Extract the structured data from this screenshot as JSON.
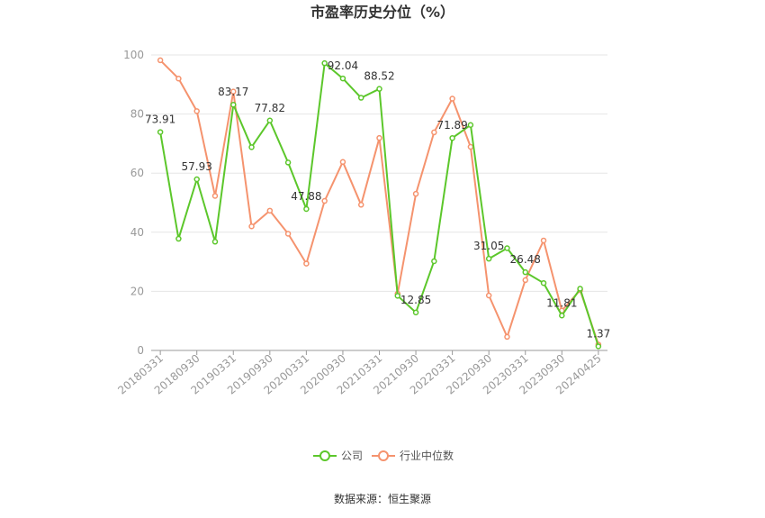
{
  "chart_data": {
    "type": "line",
    "title": "市盈率历史分位（%）",
    "xlabel": "",
    "ylabel": "",
    "ylim": [
      0,
      100
    ],
    "yticks": [
      0,
      20,
      40,
      60,
      80,
      100
    ],
    "grid": true,
    "legend_position": "bottom-center",
    "x": [
      "20180331",
      "20180630",
      "20180930",
      "20181231",
      "20190331",
      "20190630",
      "20190930",
      "20191231",
      "20200331",
      "20200630",
      "20200930",
      "20201231",
      "20210331",
      "20210630",
      "20210930",
      "20211231",
      "20220331",
      "20220630",
      "20220930",
      "20221231",
      "20230331",
      "20230630",
      "20230930",
      "20231231",
      "20240425"
    ],
    "x_tick_labels": [
      "20180331",
      "20180930",
      "20190331",
      "20190930",
      "20200331",
      "20200930",
      "20210331",
      "20210930",
      "20220331",
      "20220930",
      "20230331",
      "20230930",
      "20240425"
    ],
    "series": [
      {
        "name": "公司",
        "color": "#5cc72b",
        "values": [
          73.91,
          37.8,
          57.93,
          36.8,
          83.17,
          68.8,
          77.82,
          63.6,
          47.88,
          97.2,
          92.04,
          85.5,
          88.52,
          18.5,
          12.85,
          30.2,
          71.89,
          76.3,
          31.05,
          34.6,
          26.48,
          22.8,
          11.81,
          20.9,
          1.37
        ],
        "labels": {
          "0": "73.91",
          "2": "57.93",
          "4": "83.17",
          "6": "77.82",
          "8": "47.88",
          "10": "92.04",
          "12": "88.52",
          "14": "12.85",
          "16": "71.89",
          "18": "31.05",
          "20": "26.48",
          "22": "11.81",
          "24": "1.37"
        }
      },
      {
        "name": "行业中位数",
        "color": "#f5936e",
        "values": [
          98.2,
          92.0,
          81.0,
          52.3,
          87.6,
          42.0,
          47.3,
          39.5,
          29.4,
          50.6,
          63.8,
          49.3,
          71.9,
          19.2,
          53.0,
          73.8,
          85.2,
          68.9,
          18.6,
          4.6,
          23.8,
          37.2,
          13.5,
          20.4,
          2.0
        ]
      }
    ]
  },
  "source_text": "数据来源：恒生聚源"
}
